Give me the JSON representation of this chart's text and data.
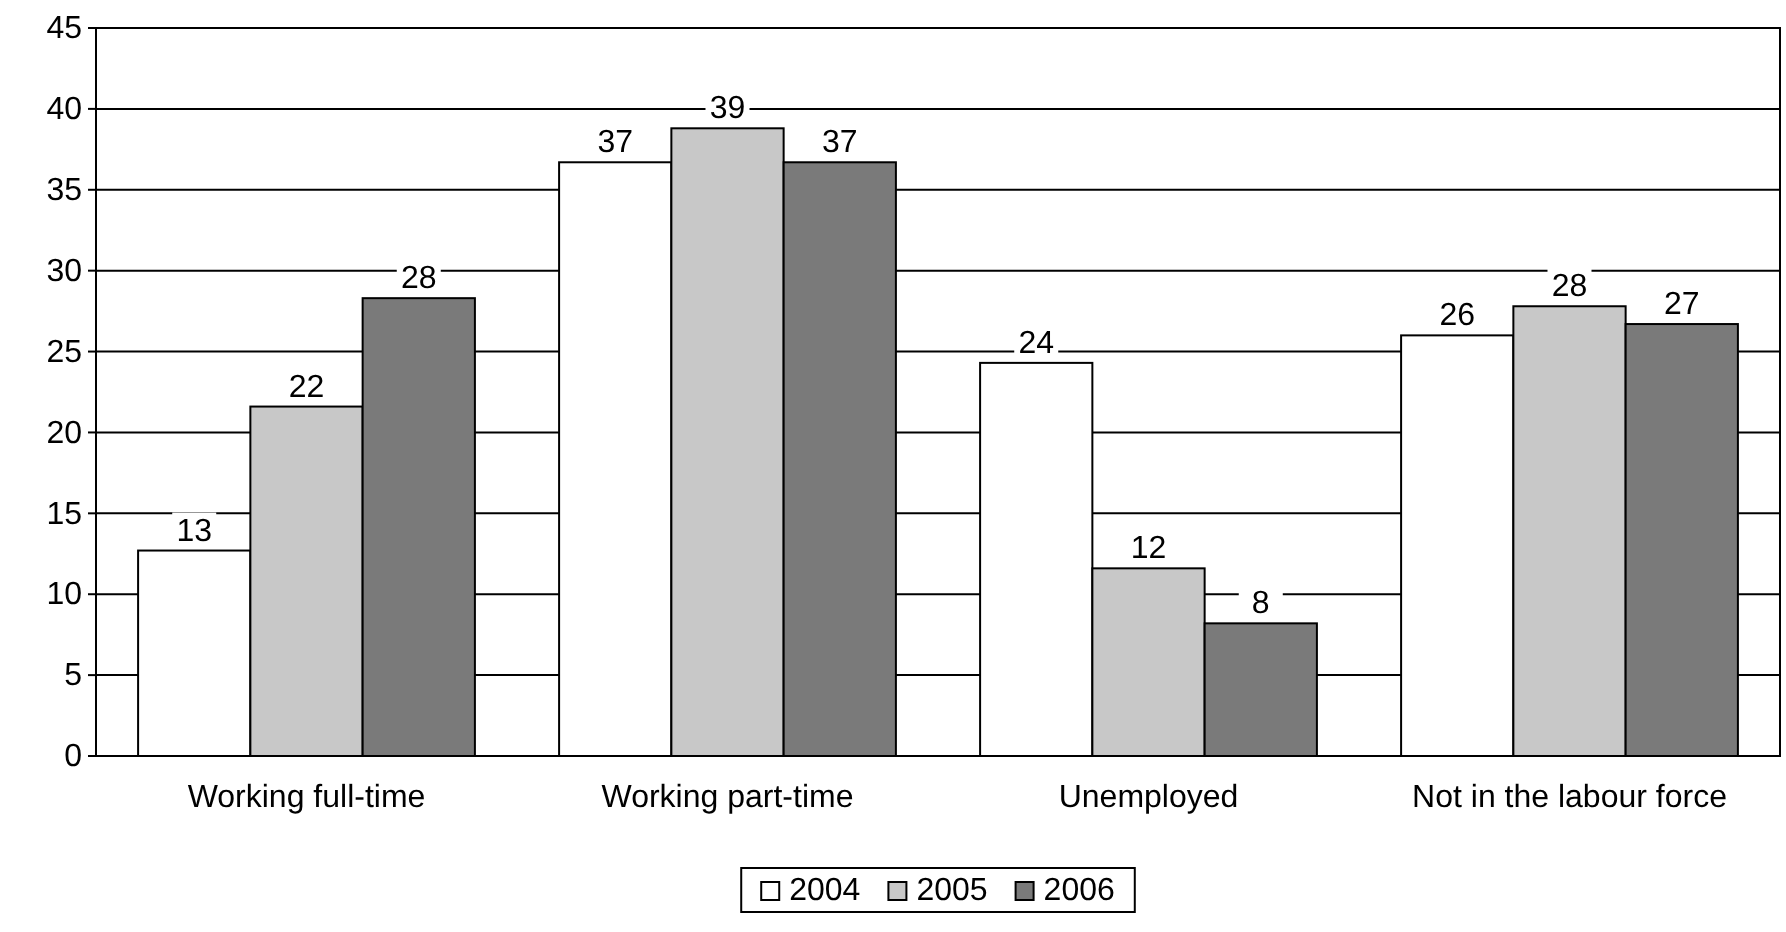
{
  "chart_data": {
    "type": "bar",
    "categories": [
      "Working full-time",
      "Working part-time",
      "Unemployed",
      "Not in the labour force"
    ],
    "series": [
      {
        "name": "2004",
        "color": "#ffffff",
        "values": [
          12.7,
          36.7,
          24.3,
          26.0
        ],
        "value_labels": [
          "13",
          "37",
          "24",
          "26"
        ]
      },
      {
        "name": "2005",
        "color": "#c8c8c8",
        "values": [
          21.6,
          38.8,
          11.6,
          27.8
        ],
        "value_labels": [
          "22",
          "39",
          "12",
          "28"
        ]
      },
      {
        "name": "2006",
        "color": "#7a7a7a",
        "values": [
          28.3,
          36.7,
          8.2,
          26.7
        ],
        "value_labels": [
          "28",
          "37",
          "8",
          "27"
        ]
      }
    ],
    "ylim": [
      0,
      45
    ],
    "yticks": [
      0,
      5,
      10,
      15,
      20,
      25,
      30,
      35,
      40,
      45
    ],
    "grid": "y",
    "legend": "bottom"
  }
}
